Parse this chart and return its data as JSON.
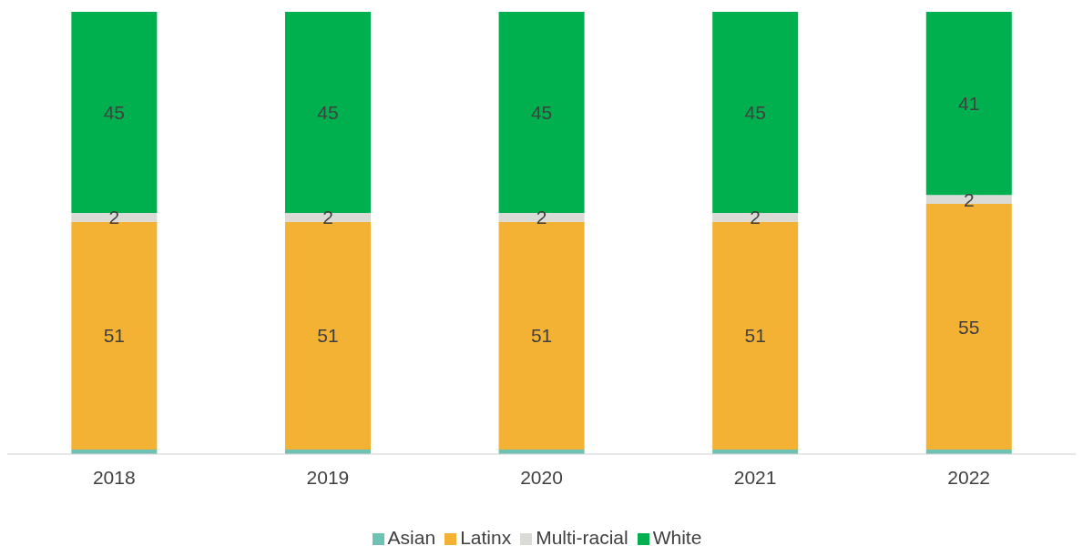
{
  "chart_data": {
    "type": "bar",
    "stacked": true,
    "categories": [
      "2018",
      "2019",
      "2020",
      "2021",
      "2022"
    ],
    "series": [
      {
        "name": "Asian",
        "color": "#6fc1b4",
        "values": [
          1,
          1,
          1,
          1,
          1
        ],
        "value_labels": [
          null,
          null,
          null,
          null,
          null
        ]
      },
      {
        "name": "Latinx",
        "color": "#f4b235",
        "values": [
          51,
          51,
          51,
          51,
          55
        ],
        "value_labels": [
          "51",
          "51",
          "51",
          "51",
          "55"
        ]
      },
      {
        "name": "Multi-racial",
        "color": "#dadad6",
        "values": [
          2,
          2,
          2,
          2,
          2
        ],
        "value_labels": [
          "2",
          "2",
          "2",
          "2",
          "2"
        ]
      },
      {
        "name": "White",
        "color": "#00b04f",
        "values": [
          45,
          45,
          45,
          45,
          41
        ],
        "value_labels": [
          "45",
          "45",
          "45",
          "45",
          "41"
        ]
      }
    ],
    "legend": "bottom",
    "grid": false
  }
}
